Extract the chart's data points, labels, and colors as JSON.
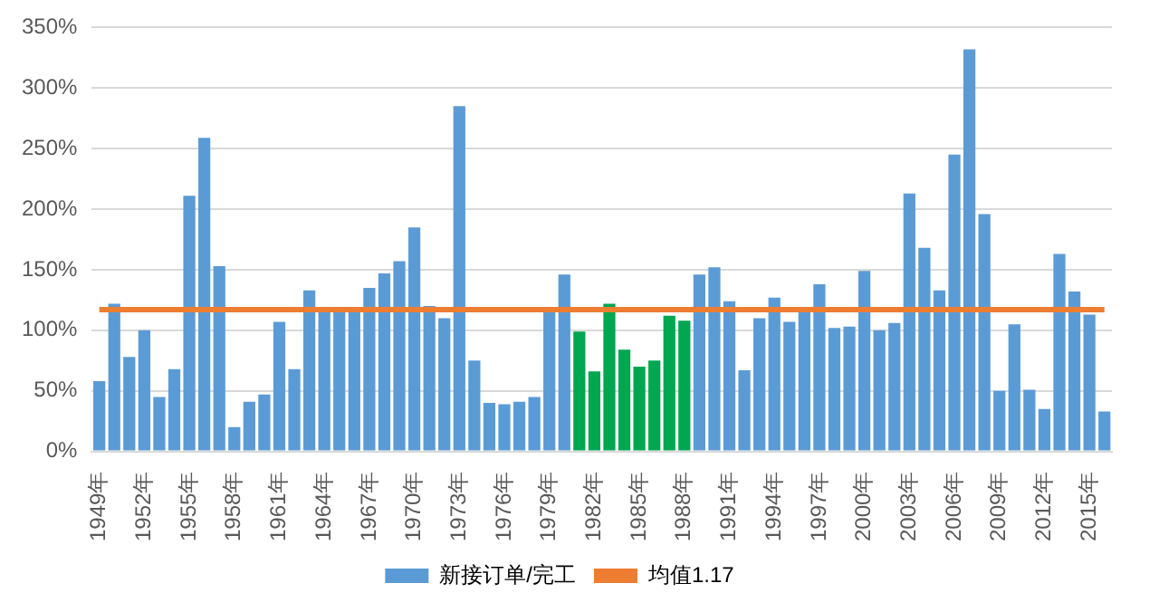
{
  "chart_data": {
    "type": "bar",
    "categories": [
      "1949年",
      null,
      null,
      "1952年",
      null,
      null,
      "1955年",
      null,
      null,
      "1958年",
      null,
      null,
      "1961年",
      null,
      null,
      "1964年",
      null,
      null,
      "1967年",
      null,
      null,
      "1970年",
      null,
      null,
      "1973年",
      null,
      null,
      "1976年",
      null,
      null,
      "1979年",
      null,
      null,
      "1982年",
      null,
      null,
      "1985年",
      null,
      null,
      "1988年",
      null,
      null,
      "1991年",
      null,
      null,
      "1994年",
      null,
      null,
      "1997年",
      null,
      null,
      "2000年",
      null,
      null,
      "2003年",
      null,
      null,
      "2006年",
      null,
      null,
      "2009年",
      null,
      null,
      "2012年",
      null,
      null,
      "2015年",
      null
    ],
    "series": [
      {
        "name": "新接订单/完工",
        "color": "#5b9bd5",
        "colors": [
          "#5b9bd5",
          "#5b9bd5",
          "#5b9bd5",
          "#5b9bd5",
          "#5b9bd5",
          "#5b9bd5",
          "#5b9bd5",
          "#5b9bd5",
          "#5b9bd5",
          "#5b9bd5",
          "#5b9bd5",
          "#5b9bd5",
          "#5b9bd5",
          "#5b9bd5",
          "#5b9bd5",
          "#5b9bd5",
          "#5b9bd5",
          "#5b9bd5",
          "#5b9bd5",
          "#5b9bd5",
          "#5b9bd5",
          "#5b9bd5",
          "#5b9bd5",
          "#5b9bd5",
          "#5b9bd5",
          "#5b9bd5",
          "#5b9bd5",
          "#5b9bd5",
          "#5b9bd5",
          "#5b9bd5",
          "#5b9bd5",
          "#5b9bd5",
          "#00a650",
          "#00a650",
          "#00a650",
          "#00a650",
          "#00a650",
          "#00a650",
          "#00a650",
          "#00a650",
          "#5b9bd5",
          "#5b9bd5",
          "#5b9bd5",
          "#5b9bd5",
          "#5b9bd5",
          "#5b9bd5",
          "#5b9bd5",
          "#5b9bd5",
          "#5b9bd5",
          "#5b9bd5",
          "#5b9bd5",
          "#5b9bd5",
          "#5b9bd5",
          "#5b9bd5",
          "#5b9bd5",
          "#5b9bd5",
          "#5b9bd5",
          "#5b9bd5",
          "#5b9bd5",
          "#5b9bd5",
          "#5b9bd5",
          "#5b9bd5",
          "#5b9bd5",
          "#5b9bd5",
          "#5b9bd5",
          "#5b9bd5",
          "#5b9bd5",
          "#5b9bd5"
        ],
        "values": [
          58,
          122,
          78,
          100,
          45,
          68,
          211,
          259,
          153,
          20,
          41,
          47,
          107,
          68,
          133,
          119,
          117,
          117,
          135,
          147,
          157,
          185,
          120,
          110,
          285,
          75,
          40,
          39,
          41,
          45,
          116,
          146,
          99,
          66,
          122,
          84,
          70,
          75,
          112,
          108,
          146,
          152,
          124,
          67,
          110,
          127,
          107,
          117,
          138,
          102,
          103,
          149,
          100,
          106,
          213,
          168,
          133,
          245,
          332,
          196,
          50,
          105,
          51,
          35,
          163,
          132,
          113,
          33
        ]
      },
      {
        "name": "均值1.17",
        "type": "line",
        "color": "#ed7d31",
        "values": [
          117,
          117,
          117,
          117,
          117,
          117,
          117,
          117,
          117,
          117,
          117,
          117,
          117,
          117,
          117,
          117,
          117,
          117,
          117,
          117,
          117,
          117,
          117,
          117,
          117,
          117,
          117,
          117,
          117,
          117,
          117,
          117,
          117,
          117,
          117,
          117,
          117,
          117,
          117,
          117,
          117,
          117,
          117,
          117,
          117,
          117,
          117,
          117,
          117,
          117,
          117,
          117,
          117,
          117,
          117,
          117,
          117,
          117,
          117,
          117,
          117,
          117,
          117,
          117,
          117,
          117,
          117,
          117
        ]
      }
    ],
    "ylim": [
      0,
      350
    ],
    "yticks": [
      {
        "value": 0,
        "label": "0%"
      },
      {
        "value": 50,
        "label": "50%"
      },
      {
        "value": 100,
        "label": "100%"
      },
      {
        "value": 150,
        "label": "150%"
      },
      {
        "value": 200,
        "label": "200%"
      },
      {
        "value": 250,
        "label": "250%"
      },
      {
        "value": 300,
        "label": "300%"
      },
      {
        "value": 350,
        "label": "350%"
      }
    ],
    "grid": "y",
    "legend": "bottom",
    "marker": "none",
    "line_style": "solid"
  }
}
